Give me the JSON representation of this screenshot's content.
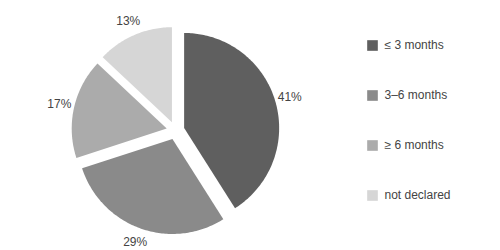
{
  "chart_data": {
    "type": "pie",
    "categories": [
      "≤ 3 months",
      "3–6 months",
      "≥ 6 months",
      "not declared"
    ],
    "values": [
      41,
      29,
      17,
      13
    ],
    "value_labels": [
      "41%",
      "29%",
      "17%",
      "13%"
    ],
    "colors": [
      "#5f5f5f",
      "#8a8a8a",
      "#ababab",
      "#d6d6d6"
    ],
    "data_labels": true,
    "legend": "right"
  }
}
